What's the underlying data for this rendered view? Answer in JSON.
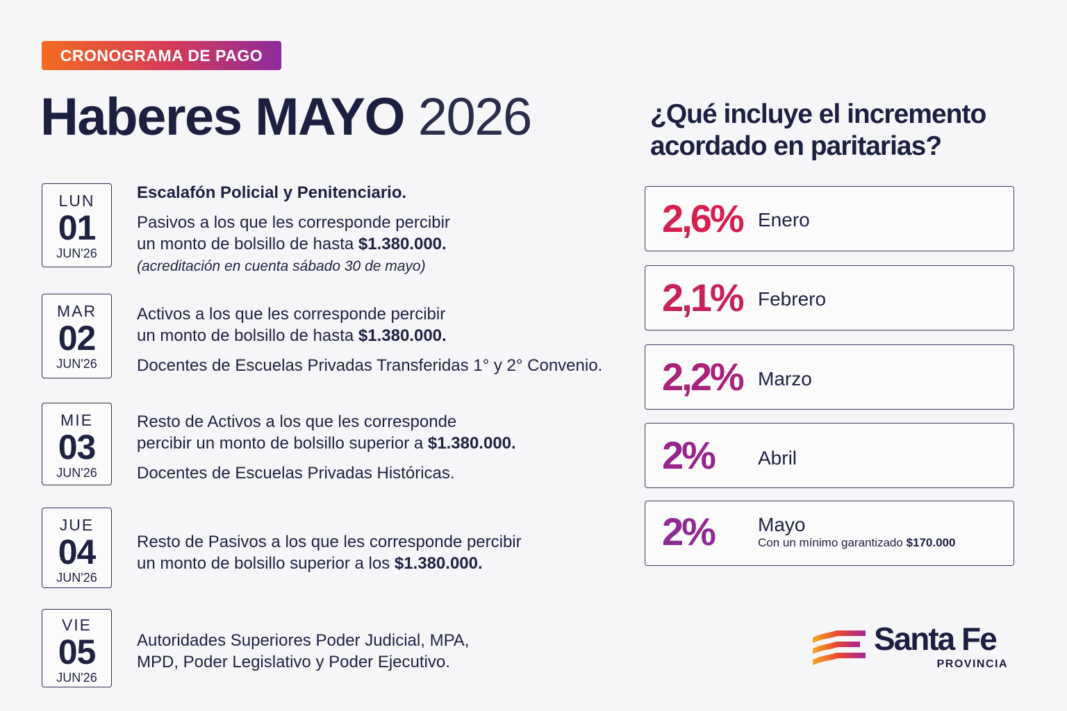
{
  "badge": "CRONOGRAMA DE PAGO",
  "title": {
    "bold": "Haberes MAYO",
    "year": "2026"
  },
  "schedule": [
    {
      "dow": "LUN",
      "day": "01",
      "month": "JUN'26",
      "heading": "Escalafón Policial y Penitenciario.",
      "line1": "Pasivos a los que les corresponde percibir",
      "line2a": "un monto de bolsillo de hasta ",
      "line2b": "$1.380.000.",
      "note": "(acreditación en cuenta sábado 30 de mayo)"
    },
    {
      "dow": "MAR",
      "day": "02",
      "month": "JUN'26",
      "line1": "Activos a los que les corresponde percibir",
      "line2a": "un monto de bolsillo de hasta ",
      "line2b": "$1.380.000.",
      "extra": "Docentes de Escuelas Privadas Transferidas 1° y 2° Convenio."
    },
    {
      "dow": "MIE",
      "day": "03",
      "month": "JUN'26",
      "line1": "Resto de Activos a los que les corresponde",
      "line2a": "percibir un monto de bolsillo superior a ",
      "line2b": "$1.380.000.",
      "extra": "Docentes de Escuelas Privadas Históricas."
    },
    {
      "dow": "JUE",
      "day": "04",
      "month": "JUN'26",
      "line1": "Resto de Pasivos a los que les corresponde percibir",
      "line2a": "un monto de bolsillo superior a los ",
      "line2b": "$1.380.000."
    },
    {
      "dow": "VIE",
      "day": "05",
      "month": "JUN'26",
      "line1": "Autoridades Superiores Poder Judicial, MPA,",
      "line2a": "MPD, Poder Legislativo y Poder Ejecutivo."
    }
  ],
  "question": "¿Qué incluye el incremento acordado en paritarias?",
  "increments": [
    {
      "pct": "2,6%",
      "month": "Enero",
      "color": "#d4204f"
    },
    {
      "pct": "2,1%",
      "month": "Febrero",
      "color": "#c72158"
    },
    {
      "pct": "2,2%",
      "month": "Marzo",
      "color": "#a8237a"
    },
    {
      "pct": "2%",
      "month": "Abril",
      "color": "#96268c"
    },
    {
      "pct": "2%",
      "month": "Mayo",
      "color": "#8e2a94",
      "sub_text": "Con un mínimo garantizado ",
      "sub_amount": "$170.000"
    }
  ],
  "logo": {
    "name": "Santa Fe",
    "subtitle": "PROVINCIA",
    "icon": "santa-fe-logo-icon"
  }
}
